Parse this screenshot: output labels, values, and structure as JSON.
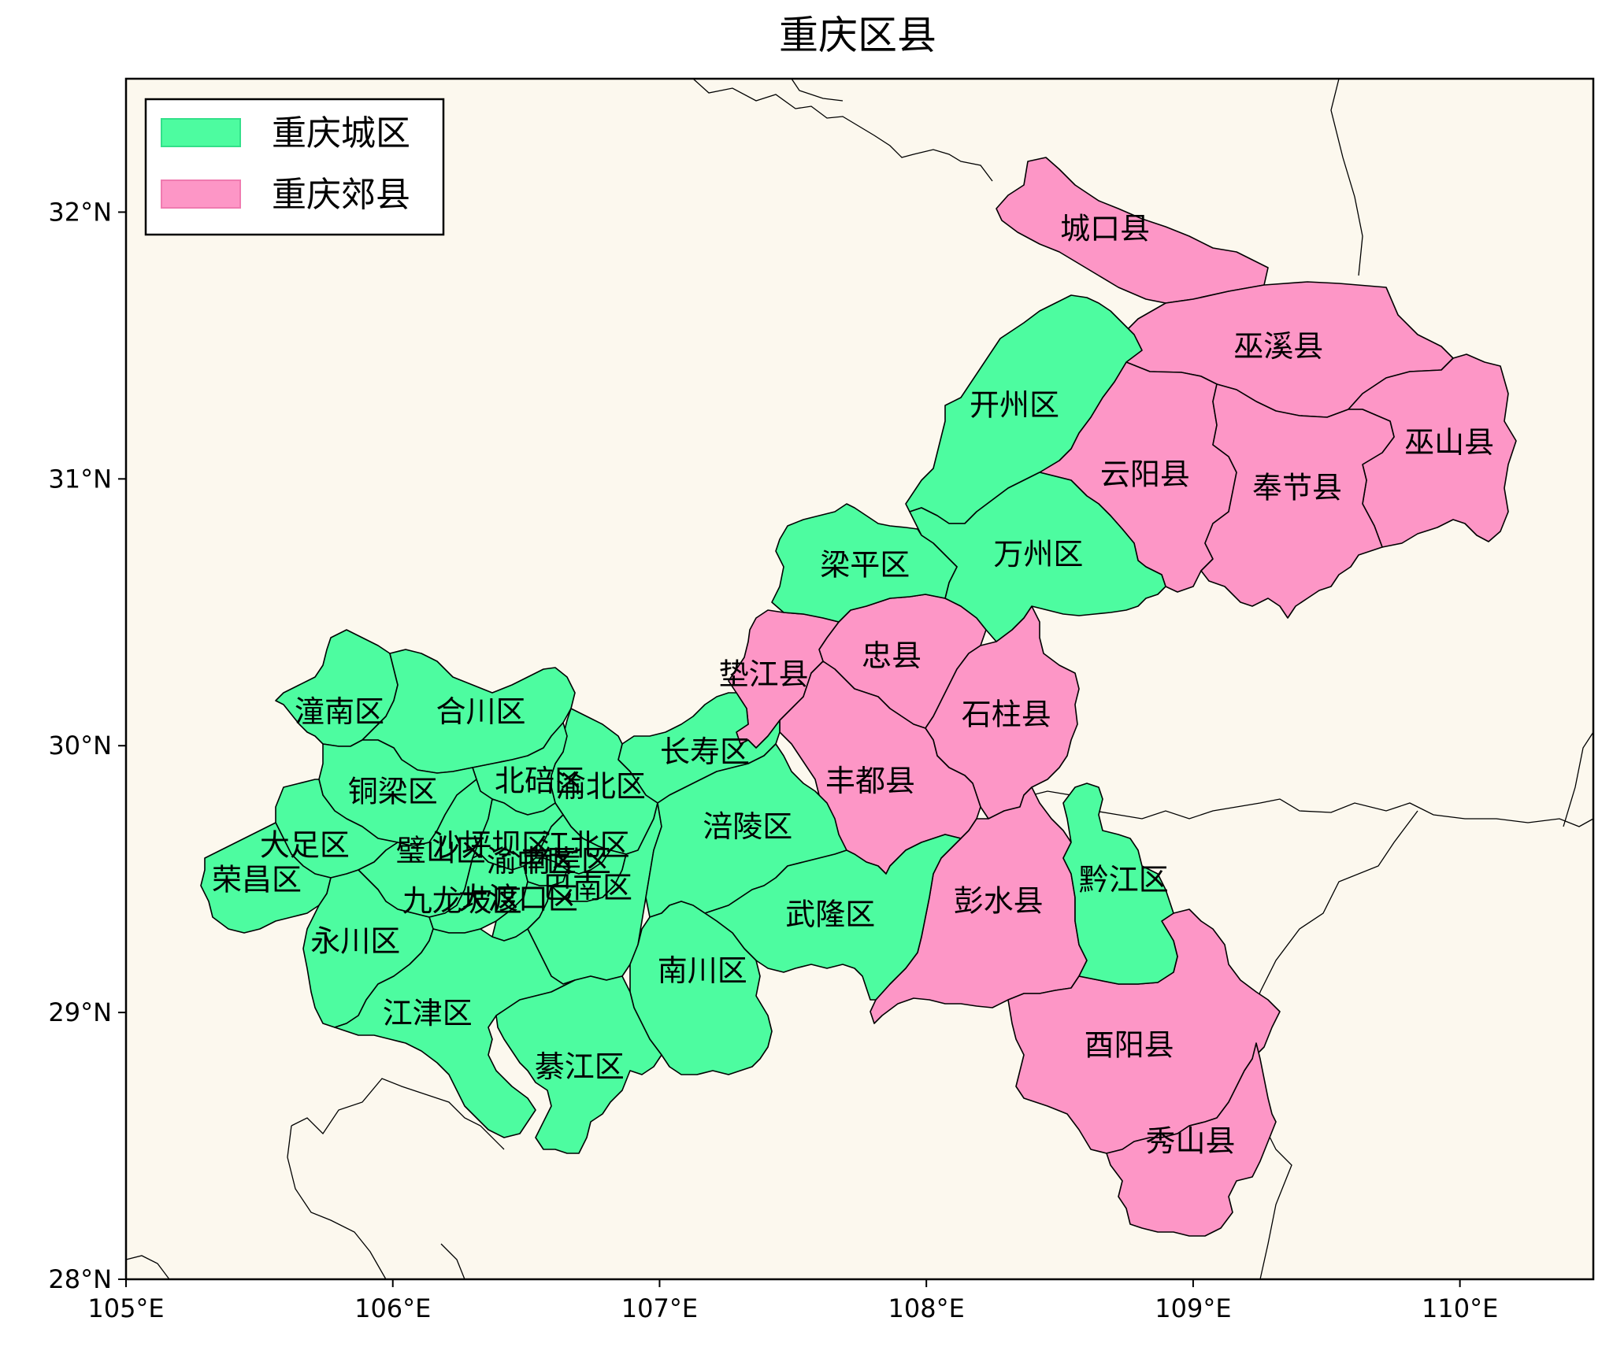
{
  "title": "重庆区县",
  "axes": {
    "xlim": [
      105,
      110.5
    ],
    "ylim": [
      28,
      32.5
    ],
    "x_ticks": [
      105,
      106,
      107,
      108,
      109,
      110
    ],
    "y_ticks": [
      28,
      29,
      30,
      31,
      32
    ],
    "x_tick_labels": [
      "105°E",
      "106°E",
      "107°E",
      "108°E",
      "109°E",
      "110°E"
    ],
    "y_tick_labels": [
      "28°N",
      "29°N",
      "30°N",
      "31°N",
      "32°N"
    ]
  },
  "colors": {
    "urban": "#4dfca0",
    "suburban": "#fd96c6",
    "ocean_background": "#fcf8ee",
    "border": "#000000"
  },
  "legend": {
    "placement": "top-left",
    "items": [
      {
        "label": "重庆城区",
        "color": "#4dfca0"
      },
      {
        "label": "重庆郊县",
        "color": "#fd96c6"
      }
    ]
  },
  "districts": [
    {
      "name": "城口县",
      "category": "suburban",
      "lon": 108.67,
      "lat": 31.93
    },
    {
      "name": "巫溪县",
      "category": "suburban",
      "lon": 109.32,
      "lat": 31.49
    },
    {
      "name": "开州区",
      "category": "urban",
      "lon": 108.33,
      "lat": 31.27
    },
    {
      "name": "巫山县",
      "category": "suburban",
      "lon": 109.96,
      "lat": 31.13
    },
    {
      "name": "云阳县",
      "category": "suburban",
      "lon": 108.82,
      "lat": 31.01
    },
    {
      "name": "奉节县",
      "category": "suburban",
      "lon": 109.39,
      "lat": 30.96
    },
    {
      "name": "万州区",
      "category": "urban",
      "lon": 108.42,
      "lat": 30.71
    },
    {
      "name": "梁平区",
      "category": "urban",
      "lon": 107.77,
      "lat": 30.67
    },
    {
      "name": "忠县",
      "category": "suburban",
      "lon": 107.87,
      "lat": 30.33
    },
    {
      "name": "垫江县",
      "category": "suburban",
      "lon": 107.39,
      "lat": 30.26
    },
    {
      "name": "石柱县",
      "category": "suburban",
      "lon": 108.3,
      "lat": 30.11
    },
    {
      "name": "潼南区",
      "category": "urban",
      "lon": 105.8,
      "lat": 30.12
    },
    {
      "name": "合川区",
      "category": "urban",
      "lon": 106.33,
      "lat": 30.12
    },
    {
      "name": "长寿区",
      "category": "urban",
      "lon": 107.17,
      "lat": 29.97
    },
    {
      "name": "丰都县",
      "category": "suburban",
      "lon": 107.79,
      "lat": 29.86
    },
    {
      "name": "北碚区",
      "category": "urban",
      "lon": 106.55,
      "lat": 29.86
    },
    {
      "name": "渝北区",
      "category": "urban",
      "lon": 106.78,
      "lat": 29.84
    },
    {
      "name": "铜梁区",
      "category": "urban",
      "lon": 106.0,
      "lat": 29.82
    },
    {
      "name": "涪陵区",
      "category": "urban",
      "lon": 107.33,
      "lat": 29.69
    },
    {
      "name": "大足区",
      "category": "urban",
      "lon": 105.67,
      "lat": 29.62
    },
    {
      "name": "璧山区",
      "category": "urban",
      "lon": 106.18,
      "lat": 29.6
    },
    {
      "name": "沙坪坝区",
      "category": "urban",
      "lon": 106.37,
      "lat": 29.62
    },
    {
      "name": "江北区",
      "category": "urban",
      "lon": 106.72,
      "lat": 29.62
    },
    {
      "name": "渝中区",
      "category": "urban",
      "lon": 106.52,
      "lat": 29.56
    },
    {
      "name": "南岸区",
      "category": "urban",
      "lon": 106.65,
      "lat": 29.56
    },
    {
      "name": "黔江区",
      "category": "urban",
      "lon": 108.74,
      "lat": 29.49
    },
    {
      "name": "荣昌区",
      "category": "urban",
      "lon": 105.49,
      "lat": 29.49
    },
    {
      "name": "巴南区",
      "category": "urban",
      "lon": 106.73,
      "lat": 29.46
    },
    {
      "name": "彭水县",
      "category": "suburban",
      "lon": 108.27,
      "lat": 29.41
    },
    {
      "name": "九龙坡区",
      "category": "urban",
      "lon": 106.26,
      "lat": 29.41
    },
    {
      "name": "大渡口区",
      "category": "urban",
      "lon": 106.47,
      "lat": 29.42
    },
    {
      "name": "武隆区",
      "category": "urban",
      "lon": 107.64,
      "lat": 29.36
    },
    {
      "name": "永川区",
      "category": "urban",
      "lon": 105.86,
      "lat": 29.26
    },
    {
      "name": "南川区",
      "category": "urban",
      "lon": 107.16,
      "lat": 29.15
    },
    {
      "name": "江津区",
      "category": "urban",
      "lon": 106.13,
      "lat": 28.99
    },
    {
      "name": "酉阳县",
      "category": "suburban",
      "lon": 108.76,
      "lat": 28.87
    },
    {
      "name": "綦江区",
      "category": "urban",
      "lon": 106.7,
      "lat": 28.79
    },
    {
      "name": "秀山县",
      "category": "suburban",
      "lon": 108.99,
      "lat": 28.51
    }
  ]
}
